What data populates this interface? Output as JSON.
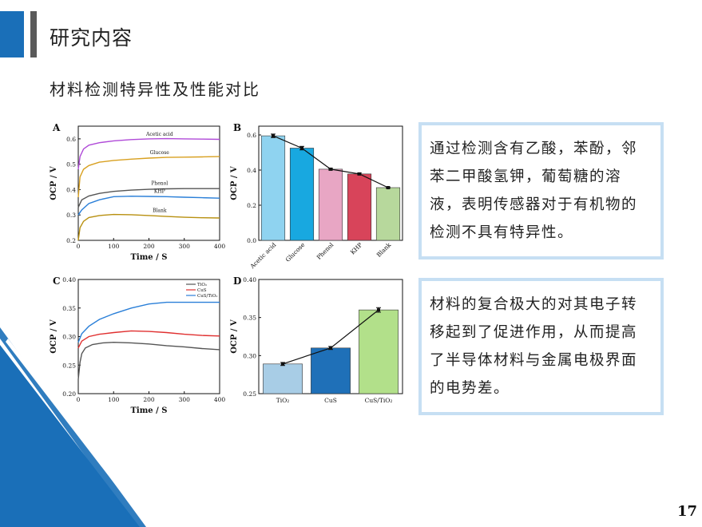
{
  "slide": {
    "title": "研究内容",
    "subtitle": "材料检测特异性及性能对比",
    "text1": "通过检测含有乙酸，苯酚，邻苯二甲酸氢钾，葡萄糖的溶液，表明传感器对于有机物的检测不具有特异性。",
    "text2": "材料的复合极大的对其电子转移起到了促进作用，从而提高了半导体材料与金属电极界面的电势差。",
    "page_number": "17",
    "accent_color": "#1a6fb8"
  },
  "chart_data": [
    {
      "panel": "A",
      "type": "line",
      "xlabel": "Time / S",
      "ylabel": "OCP / V",
      "xlim": [
        0,
        400
      ],
      "ylim": [
        0.2,
        0.65
      ],
      "xticks": [
        "0",
        "100",
        "200",
        "300",
        "400"
      ],
      "yticks": [
        "0.2",
        "0.3",
        "0.4",
        "0.5",
        "0.6"
      ],
      "series": [
        {
          "name": "Acetic acid",
          "color": "#b04ad8",
          "x": [
            0,
            5,
            15,
            30,
            60,
            100,
            150,
            200,
            250,
            300,
            350,
            400
          ],
          "y": [
            0.48,
            0.53,
            0.56,
            0.575,
            0.585,
            0.592,
            0.597,
            0.6,
            0.601,
            0.6,
            0.599,
            0.598
          ]
        },
        {
          "name": "Glucose",
          "color": "#d8a020",
          "x": [
            0,
            5,
            15,
            30,
            60,
            100,
            150,
            200,
            250,
            300,
            350,
            400
          ],
          "y": [
            0.37,
            0.45,
            0.48,
            0.495,
            0.508,
            0.515,
            0.52,
            0.524,
            0.527,
            0.528,
            0.529,
            0.53
          ]
        },
        {
          "name": "Phenol",
          "color": "#555555",
          "x": [
            0,
            10,
            30,
            60,
            100,
            150,
            200,
            250,
            300,
            350,
            400
          ],
          "y": [
            0.33,
            0.36,
            0.375,
            0.385,
            0.393,
            0.398,
            0.401,
            0.403,
            0.404,
            0.404,
            0.404
          ]
        },
        {
          "name": "KHP",
          "color": "#2a7fd8",
          "x": [
            0,
            10,
            30,
            60,
            100,
            150,
            200,
            250,
            300,
            350,
            400
          ],
          "y": [
            0.3,
            0.32,
            0.345,
            0.36,
            0.372,
            0.374,
            0.373,
            0.372,
            0.37,
            0.368,
            0.366
          ]
        },
        {
          "name": "Blank",
          "color": "#b89010",
          "x": [
            0,
            5,
            15,
            30,
            60,
            100,
            150,
            200,
            250,
            300,
            350,
            400
          ],
          "y": [
            0.2,
            0.25,
            0.275,
            0.29,
            0.298,
            0.302,
            0.301,
            0.298,
            0.294,
            0.291,
            0.289,
            0.288
          ]
        }
      ]
    },
    {
      "panel": "B",
      "type": "bar",
      "ylabel": "OCP / V",
      "ylim": [
        0,
        0.65
      ],
      "yticks": [
        "0.0",
        "0.2",
        "0.4",
        "0.6"
      ],
      "categories": [
        "Acetic acid",
        "Glucose",
        "Phenol",
        "KHP",
        "Blank"
      ],
      "values": [
        0.595,
        0.525,
        0.405,
        0.378,
        0.3
      ],
      "errors": [
        0.01,
        0.01,
        0.005,
        0.005,
        0.004
      ],
      "colors": [
        "#8fd3f0",
        "#18a8e0",
        "#e8a6c4",
        "#d8445a",
        "#b7d89c"
      ]
    },
    {
      "panel": "C",
      "type": "line",
      "xlabel": "Time / S",
      "ylabel": "OCP / V",
      "xlim": [
        0,
        400
      ],
      "ylim": [
        0.2,
        0.4
      ],
      "xticks": [
        "0",
        "100",
        "200",
        "300",
        "400"
      ],
      "yticks": [
        "0.20",
        "0.25",
        "0.30",
        "0.35",
        "0.40"
      ],
      "series": [
        {
          "name": "TiO₂",
          "color": "#555555",
          "x": [
            0,
            5,
            10,
            20,
            40,
            70,
            100,
            150,
            200,
            250,
            300,
            350,
            400
          ],
          "y": [
            0.225,
            0.255,
            0.27,
            0.28,
            0.286,
            0.289,
            0.29,
            0.289,
            0.287,
            0.284,
            0.282,
            0.279,
            0.277
          ]
        },
        {
          "name": "CuS",
          "color": "#e03030",
          "x": [
            0,
            10,
            30,
            60,
            100,
            150,
            200,
            250,
            300,
            350,
            400
          ],
          "y": [
            0.28,
            0.292,
            0.3,
            0.304,
            0.307,
            0.31,
            0.309,
            0.307,
            0.304,
            0.302,
            0.301
          ]
        },
        {
          "name": "CuS/TiO₂",
          "color": "#2a7fd8",
          "x": [
            0,
            10,
            30,
            60,
            100,
            150,
            200,
            250,
            300,
            350,
            400
          ],
          "y": [
            0.29,
            0.305,
            0.318,
            0.33,
            0.34,
            0.35,
            0.357,
            0.36,
            0.36,
            0.36,
            0.36
          ]
        }
      ]
    },
    {
      "panel": "D",
      "type": "bar",
      "ylabel": "OCP / V",
      "ylim": [
        0.25,
        0.4
      ],
      "yticks": [
        "0.25",
        "0.30",
        "0.35",
        "0.40"
      ],
      "categories": [
        "TiO₂",
        "CuS",
        "CuS/TiO₂"
      ],
      "values": [
        0.289,
        0.31,
        0.36
      ],
      "errors": [
        0.002,
        0.002,
        0.003
      ],
      "colors": [
        "#a8cde6",
        "#1f70b8",
        "#b2e08a"
      ]
    }
  ]
}
